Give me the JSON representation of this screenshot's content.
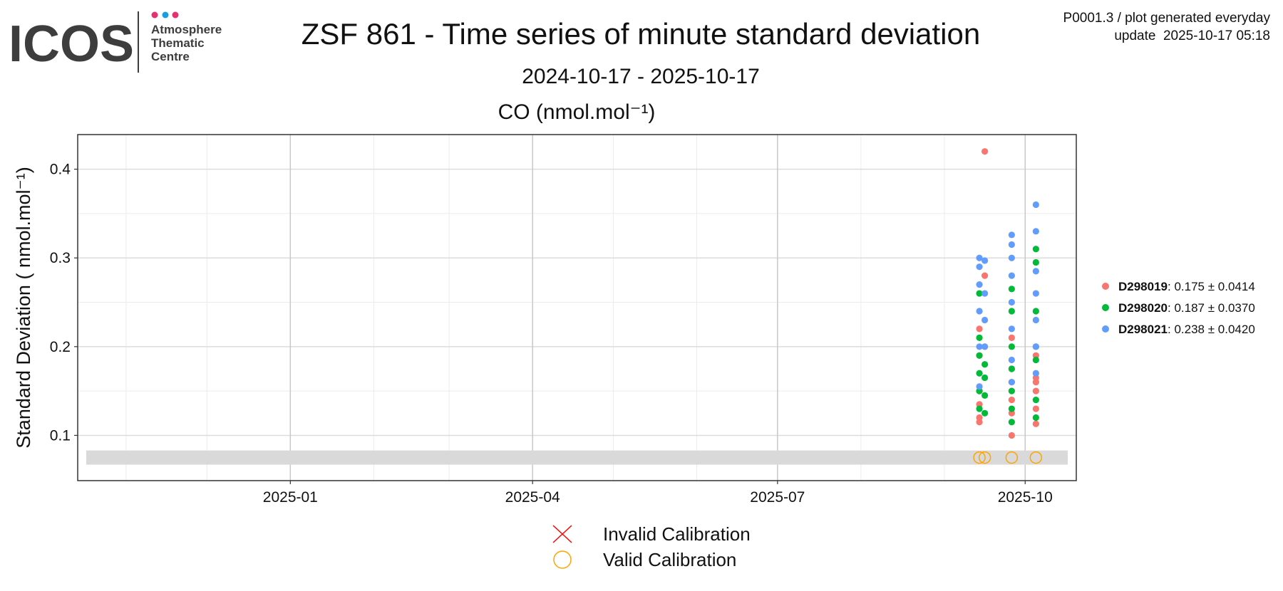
{
  "header": {
    "logo": "ICOS",
    "logo_lines": [
      "Atmosphere",
      "Thematic",
      "Centre"
    ],
    "note": "P0001.3 / plot generated everyday",
    "update": "update  2025-10-17 05:18"
  },
  "chart_data": {
    "type": "scatter",
    "title": "ZSF 861 - Time series of minute standard deviation",
    "subtitle": "2024-10-17 - 2025-10-17",
    "panel_title": "CO (nmol.mol⁻¹)",
    "y_label": "Standard Deviation ( nmol.mol⁻¹)",
    "xlim": [
      "2024-10-14",
      "2025-10-20"
    ],
    "xticks": [
      "2025-01",
      "2025-04",
      "2025-07",
      "2025-10"
    ],
    "ylim": [
      0.049,
      0.439
    ],
    "yticks": [
      0.1,
      0.2,
      0.3,
      0.4
    ],
    "grid": true,
    "band": [
      0.067,
      0.083
    ],
    "legend_position": "right",
    "series": [
      {
        "name": "D298019",
        "summary": ": 0.175 ± 0.0414",
        "color": "#F8766D",
        "x": [
          "2025-09-14",
          "2025-09-14",
          "2025-09-14",
          "2025-09-14",
          "2025-09-14",
          "2025-09-14",
          "2025-09-16",
          "2025-09-16",
          "2025-09-16",
          "2025-09-26",
          "2025-09-26",
          "2025-09-26",
          "2025-09-26",
          "2025-09-26",
          "2025-09-26",
          "2025-10-05",
          "2025-10-05",
          "2025-10-05",
          "2025-10-05",
          "2025-10-05",
          "2025-10-05"
        ],
        "values": [
          0.115,
          0.12,
          0.135,
          0.15,
          0.19,
          0.22,
          0.42,
          0.28,
          0.2,
          0.1,
          0.125,
          0.14,
          0.16,
          0.21,
          0.175,
          0.113,
          0.13,
          0.15,
          0.16,
          0.165,
          0.19
        ]
      },
      {
        "name": "D298020",
        "summary": ": 0.187 ± 0.0370",
        "color": "#00BA38",
        "x": [
          "2025-09-14",
          "2025-09-14",
          "2025-09-14",
          "2025-09-14",
          "2025-09-14",
          "2025-09-14",
          "2025-09-16",
          "2025-09-16",
          "2025-09-16",
          "2025-09-16",
          "2025-09-26",
          "2025-09-26",
          "2025-09-26",
          "2025-09-26",
          "2025-09-26",
          "2025-09-26",
          "2025-09-26",
          "2025-10-05",
          "2025-10-05",
          "2025-10-05",
          "2025-10-05",
          "2025-10-05",
          "2025-10-05",
          "2025-10-05"
        ],
        "values": [
          0.13,
          0.15,
          0.17,
          0.19,
          0.21,
          0.26,
          0.125,
          0.145,
          0.165,
          0.18,
          0.115,
          0.13,
          0.15,
          0.175,
          0.2,
          0.24,
          0.265,
          0.12,
          0.14,
          0.185,
          0.2,
          0.24,
          0.295,
          0.31
        ]
      },
      {
        "name": "D298021",
        "summary": ": 0.238 ± 0.0420",
        "color": "#619CFF",
        "x": [
          "2025-09-14",
          "2025-09-14",
          "2025-09-14",
          "2025-09-14",
          "2025-09-14",
          "2025-09-14",
          "2025-09-16",
          "2025-09-16",
          "2025-09-16",
          "2025-09-16",
          "2025-09-26",
          "2025-09-26",
          "2025-09-26",
          "2025-09-26",
          "2025-09-26",
          "2025-09-26",
          "2025-09-26",
          "2025-09-26",
          "2025-10-05",
          "2025-10-05",
          "2025-10-05",
          "2025-10-05",
          "2025-10-05",
          "2025-10-05",
          "2025-10-05"
        ],
        "values": [
          0.155,
          0.2,
          0.24,
          0.27,
          0.29,
          0.3,
          0.2,
          0.23,
          0.26,
          0.297,
          0.16,
          0.185,
          0.22,
          0.25,
          0.28,
          0.3,
          0.315,
          0.326,
          0.17,
          0.2,
          0.23,
          0.26,
          0.285,
          0.33,
          0.36
        ]
      }
    ],
    "calibrations": {
      "legend": [
        {
          "name": "Invalid Calibration",
          "color": "#FF0000"
        },
        {
          "name": "Valid Calibration",
          "color": "#FFA500"
        }
      ],
      "x": [
        "2025-09-14",
        "2025-09-16",
        "2025-09-26",
        "2025-10-05"
      ],
      "values": [
        0.075,
        0.075,
        0.075,
        0.075
      ]
    }
  }
}
